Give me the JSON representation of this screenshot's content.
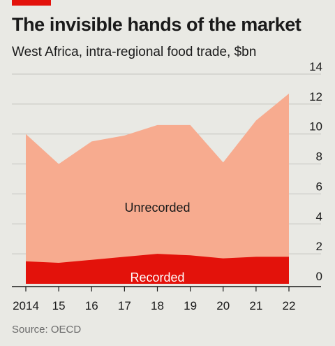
{
  "header": {
    "title": "The invisible hands of the market",
    "subtitle": "West Africa, intra-regional food trade, $bn"
  },
  "footer": {
    "source": "Source: OECD"
  },
  "colors": {
    "accent": "#e3120b",
    "unrecorded": "#f7ab8f",
    "recorded": "#e3120b",
    "gridline": "#c4c4bf",
    "background": "#e9e9e4"
  },
  "chart_data": {
    "type": "area",
    "stacked": true,
    "x": [
      "2014",
      "15",
      "16",
      "17",
      "18",
      "19",
      "20",
      "21",
      "22"
    ],
    "series": [
      {
        "name": "Recorded",
        "values": [
          1.5,
          1.4,
          1.6,
          1.8,
          2.0,
          1.9,
          1.7,
          1.8,
          1.8
        ]
      },
      {
        "name": "Unrecorded",
        "values": [
          8.5,
          6.6,
          7.9,
          8.1,
          8.6,
          8.7,
          6.4,
          9.1,
          10.9
        ]
      }
    ],
    "yticks": [
      0,
      2,
      4,
      6,
      8,
      10,
      12,
      14
    ],
    "ylim": [
      0,
      14
    ],
    "grid": true,
    "yaxis_position": "right",
    "legend": "inline labels"
  }
}
